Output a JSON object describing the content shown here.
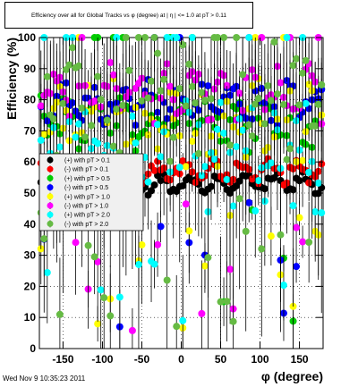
{
  "title": "Efficiency over all for Global Tracks vs φ (degree) at |  η | <= 1.0 at pT > 0.11",
  "date_stamp": "Wed Nov  9 10:35:23 2011",
  "chart_data": {
    "type": "scatter",
    "title": "Efficiency over all for Global Tracks vs φ (degree) at |  η | <= 1.0 at pT > 0.11",
    "xlabel": "φ (degree)",
    "ylabel": "Efficiency (%)",
    "xlim": [
      -180,
      180
    ],
    "ylim": [
      0,
      100
    ],
    "xticks": [
      -150,
      -100,
      -50,
      0,
      50,
      100,
      150
    ],
    "yticks": [
      0,
      10,
      20,
      30,
      40,
      50,
      60,
      70,
      80,
      90,
      100
    ],
    "grid": true,
    "legend_position": "left-middle",
    "series": [
      {
        "name": "(+) with pT > 0.1",
        "color": "#000000",
        "y_mean": 53,
        "y_amp": 2.5,
        "y_noise": 1.5,
        "outlier_rate": 0.0,
        "err": 1.5
      },
      {
        "name": "(-) with pT > 0.1",
        "color": "#ff0000",
        "y_mean": 57,
        "y_amp": 2.5,
        "y_noise": 2,
        "outlier_rate": 0.0,
        "err": 2
      },
      {
        "name": "(+) with pT > 0.5",
        "color": "#00cc00",
        "y_mean": 73,
        "y_amp": 6,
        "y_noise": 5,
        "outlier_rate": 0.1,
        "err": 10
      },
      {
        "name": "(-) with pT > 0.5",
        "color": "#0000ff",
        "y_mean": 79,
        "y_amp": 4,
        "y_noise": 4,
        "outlier_rate": 0.08,
        "err": 10
      },
      {
        "name": "(+) with pT > 1.0",
        "color": "#ffff00",
        "y_mean": 72,
        "y_amp": 8,
        "y_noise": 8,
        "outlier_rate": 0.12,
        "err": 15
      },
      {
        "name": "(-) with pT > 1.0",
        "color": "#ff00ff",
        "y_mean": 82,
        "y_amp": 5,
        "y_noise": 5,
        "outlier_rate": 0.12,
        "err": 15
      },
      {
        "name": "(+) with pT > 2.0",
        "color": "#00ffff",
        "y_mean": 64,
        "y_amp": 12,
        "y_noise": 14,
        "outlier_rate": 0.18,
        "err": 25
      },
      {
        "name": "(-) with pT > 2.0",
        "color": "#66bb44",
        "y_mean": 80,
        "y_amp": 10,
        "y_noise": 12,
        "outlier_rate": 0.15,
        "err": 25
      }
    ],
    "x_points": 90,
    "top_row_value": 100
  }
}
